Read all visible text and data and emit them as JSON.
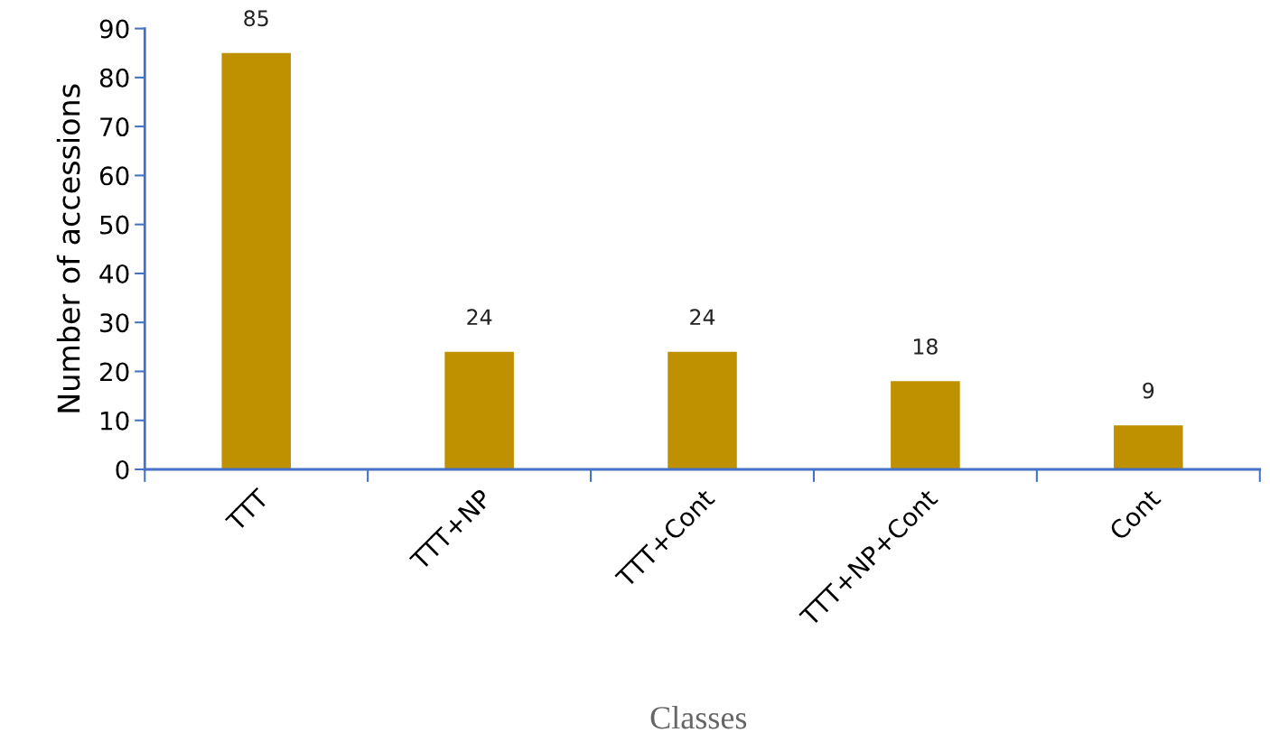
{
  "chart_data": {
    "type": "bar",
    "xlabel": "Classes",
    "ylabel": "Number of accessions",
    "categories": [
      "TTT",
      "TTT+NP",
      "TTT+Cont",
      "TTT+NP+Cont",
      "Cont"
    ],
    "values": [
      85,
      24,
      24,
      18,
      9
    ],
    "color": "#bf9000",
    "ylim": [
      0,
      90
    ],
    "yticks": [
      0,
      10,
      20,
      30,
      40,
      50,
      60,
      70,
      80,
      90
    ],
    "grid": false,
    "data_labels": true
  }
}
